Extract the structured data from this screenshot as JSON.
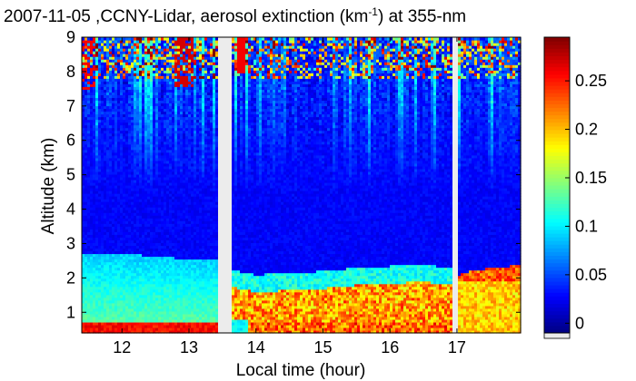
{
  "chart_data": {
    "type": "heatmap",
    "title": {
      "prefix": "2007-11-05 ,CCNY-Lidar, aerosol extinction (km",
      "sup": "-1",
      "suffix": ") at 355-nm"
    },
    "xlabel": "Local time (hour)",
    "ylabel": "Altitude (km)",
    "xlim": [
      11.4,
      17.95
    ],
    "ylim": [
      0.4,
      9.0
    ],
    "x_ticks": [
      12,
      13,
      14,
      15,
      16,
      17
    ],
    "y_ticks": [
      1,
      2,
      3,
      4,
      5,
      6,
      7,
      8,
      9
    ],
    "colorbar": {
      "label_ticks": [
        0,
        0.05,
        0.1,
        0.15,
        0.2,
        0.25
      ],
      "label_texts": [
        "0",
        "0.05",
        "0.1",
        "0.15",
        "0.2",
        "0.25"
      ],
      "range": [
        -0.01,
        0.295
      ],
      "missing_color": "#ececec"
    },
    "colormap": "jet",
    "data_gaps_hours": [
      [
        13.43,
        13.62
      ],
      [
        16.92,
        17.02
      ]
    ],
    "layers": {
      "boundary_layer_top_km": [
        [
          11.4,
          2.75
        ],
        [
          12.0,
          2.7
        ],
        [
          12.5,
          2.65
        ],
        [
          13.0,
          2.55
        ],
        [
          13.43,
          2.55
        ],
        [
          13.62,
          1.9
        ],
        [
          14.0,
          1.75
        ],
        [
          15.0,
          1.85
        ],
        [
          15.5,
          1.95
        ],
        [
          16.0,
          2.0
        ],
        [
          16.5,
          2.05
        ],
        [
          16.92,
          1.95
        ],
        [
          17.02,
          2.1
        ],
        [
          17.3,
          2.25
        ],
        [
          17.6,
          2.3
        ],
        [
          17.95,
          2.4
        ]
      ],
      "near_surface_high_extinction": [
        [
          11.4,
          12.5,
          0.8
        ],
        [
          12.5,
          13.4,
          0.7
        ]
      ],
      "high_cloud_top_km": 9.0
    }
  }
}
